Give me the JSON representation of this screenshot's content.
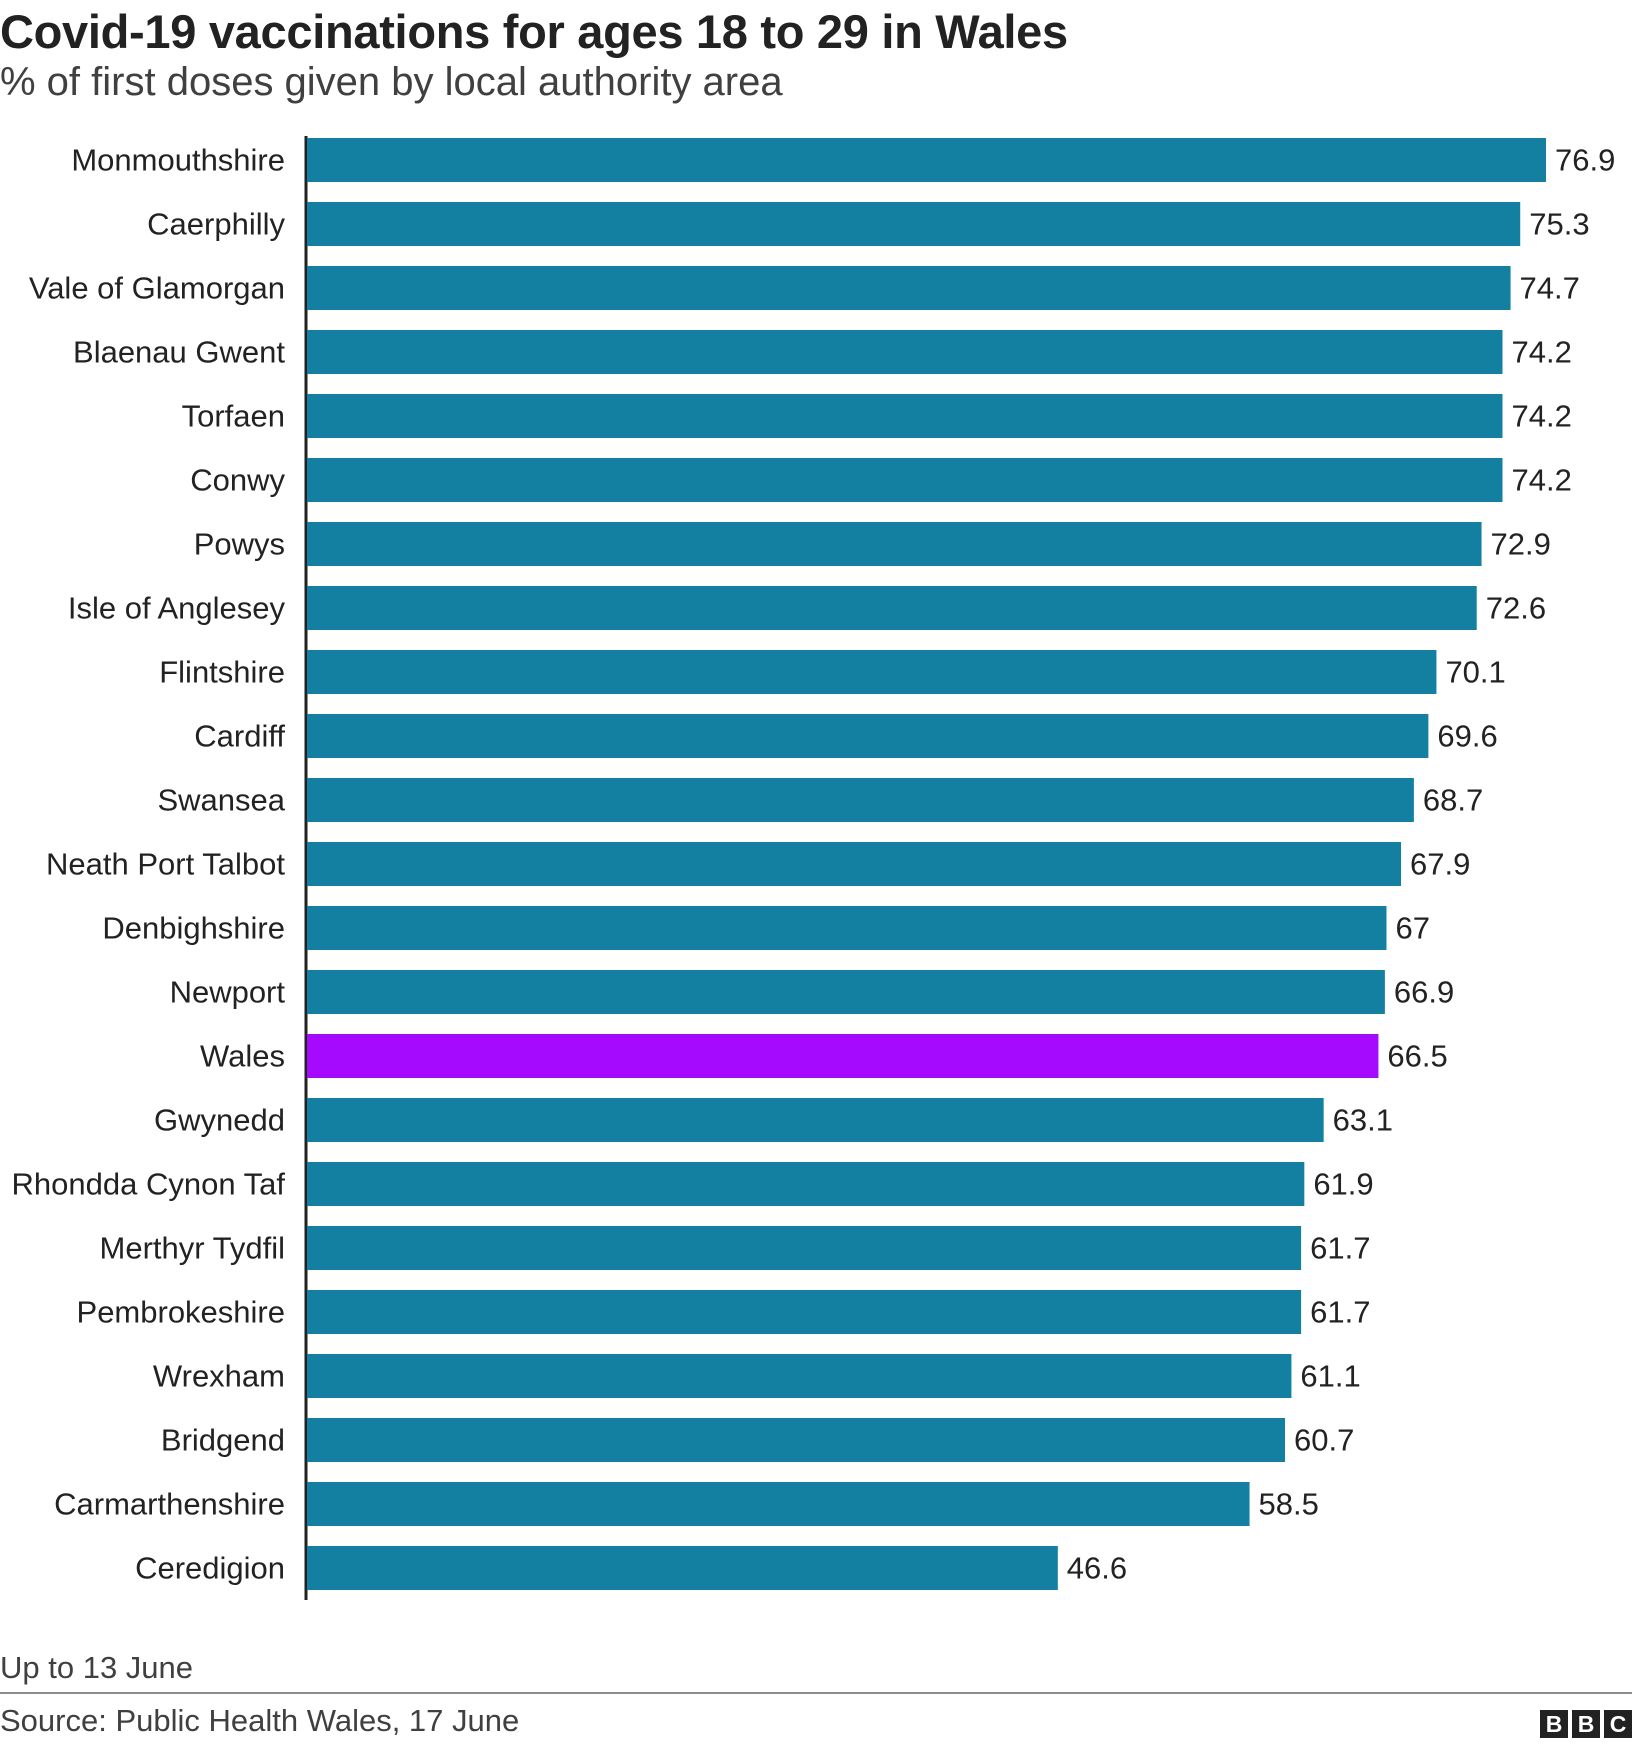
{
  "chart_data": {
    "type": "bar",
    "orientation": "horizontal",
    "title": "Covid-19 vaccinations for ages 18 to 29 in Wales",
    "subtitle": "% of first doses given by local authority area",
    "categories": [
      "Monmouthshire",
      "Caerphilly",
      "Vale of Glamorgan",
      "Blaenau Gwent",
      "Torfaen",
      "Conwy",
      "Powys",
      "Isle of Anglesey",
      "Flintshire",
      "Cardiff",
      "Swansea",
      "Neath Port Talbot",
      "Denbighshire",
      "Newport",
      "Wales",
      "Gwynedd",
      "Rhondda Cynon Taf",
      "Merthyr Tydfil",
      "Pembrokeshire",
      "Wrexham",
      "Bridgend",
      "Carmarthenshire",
      "Ceredigion"
    ],
    "values": [
      76.9,
      75.3,
      74.7,
      74.2,
      74.2,
      74.2,
      72.9,
      72.6,
      70.1,
      69.6,
      68.7,
      67.9,
      67,
      66.9,
      66.5,
      63.1,
      61.9,
      61.7,
      61.7,
      61.1,
      60.7,
      58.5,
      46.6
    ],
    "xlim": [
      0,
      80
    ],
    "highlight_category": "Wales",
    "bar_color": "#1380A1",
    "highlight_color": "#A50AFF",
    "grid": false,
    "legend": "none",
    "note": "Up to 13 June",
    "source": "Source: Public Health Wales, 17 June"
  },
  "branding": {
    "logo_letters": [
      "B",
      "B",
      "C"
    ]
  }
}
